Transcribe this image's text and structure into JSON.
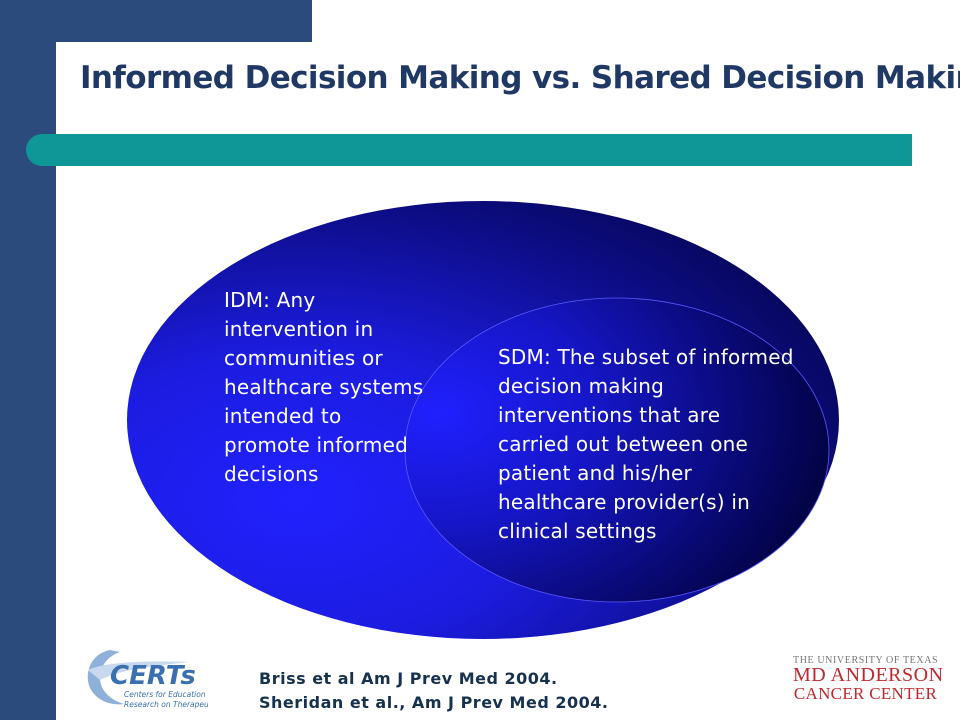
{
  "slide": {
    "title": "Informed Decision Making vs. Shared Decision Making",
    "colors": {
      "navy_band": "#2b4b7c",
      "teal_accent": "#0f9696",
      "title_text": "#1f3864",
      "ellipse_outer": "#1e1ee6",
      "ellipse_inner_dark": "#000030",
      "md_anderson_red": "#c1272d"
    }
  },
  "diagram": {
    "idm_text": "IDM: Any intervention in communities or healthcare systems intended to promote informed decisions",
    "sdm_text": "SDM: The subset of informed decision making interventions that are carried out between one patient and his/her healthcare provider(s) in clinical settings"
  },
  "citations": [
    "Briss et al Am J Prev Med 2004.",
    "Sheridan et al., Am J Prev Med 2004."
  ],
  "logos": {
    "certs": {
      "name": "CERTs",
      "subtitle_line1": "Centers for Education &",
      "subtitle_line2": "Research on Therapeutics"
    },
    "md_anderson": {
      "line1": "THE UNIVERSITY OF TEXAS",
      "line2": "MD ANDERSON",
      "line3": "CANCER CENTER"
    }
  }
}
